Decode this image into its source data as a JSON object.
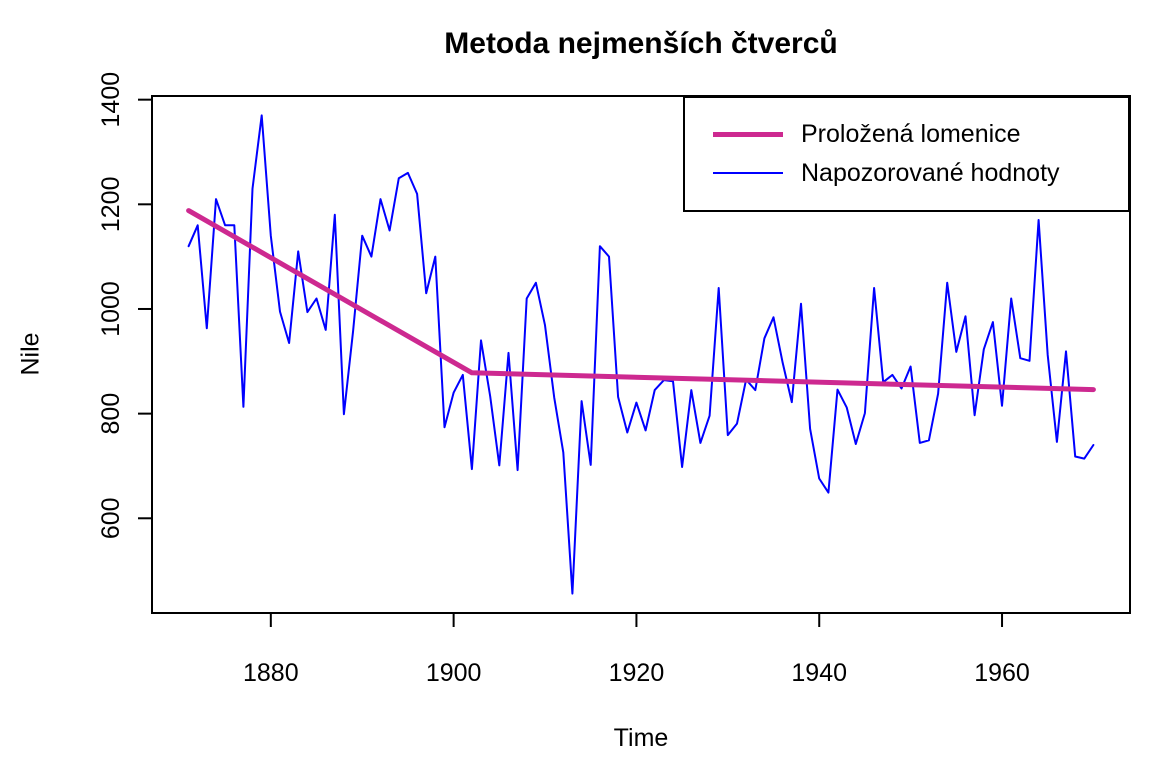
{
  "title": "Metoda nejmenších čtverců",
  "colors": {
    "fitted": "#CD2990",
    "observed": "#0000FF",
    "axis": "#000000",
    "background": "#FFFFFF"
  },
  "legend": {
    "position": "topright",
    "items": [
      {
        "label": "Proložená lomenice",
        "color": "#CD2990",
        "line_width": 5
      },
      {
        "label": "Napozorované hodnoty",
        "color": "#0000FF",
        "line_width": 2
      }
    ]
  },
  "chart_data": {
    "type": "line",
    "title": "Metoda nejmenších čtverců",
    "xlabel": "Time",
    "ylabel": "Nile",
    "xlim": [
      1867,
      1974
    ],
    "ylim": [
      419,
      1407
    ],
    "x_ticks": [
      1880,
      1900,
      1920,
      1940,
      1960
    ],
    "y_ticks": [
      600,
      800,
      1000,
      1200,
      1400
    ],
    "grid": false,
    "legend_position": "topright",
    "series": [
      {
        "name": "Proložená lomenice",
        "color": "#CD2990",
        "width": 5,
        "x": [
          1871,
          1902,
          1970
        ],
        "y": [
          1188,
          878,
          846
        ]
      },
      {
        "name": "Napozorované hodnoty",
        "color": "#0000FF",
        "width": 2,
        "x_start": 1871,
        "x_step": 1,
        "y": [
          1120,
          1160,
          963,
          1210,
          1160,
          1160,
          813,
          1230,
          1370,
          1140,
          995,
          935,
          1110,
          994,
          1020,
          960,
          1180,
          799,
          958,
          1140,
          1100,
          1210,
          1150,
          1250,
          1260,
          1220,
          1030,
          1100,
          774,
          840,
          874,
          694,
          940,
          833,
          701,
          916,
          692,
          1020,
          1050,
          969,
          831,
          726,
          456,
          824,
          702,
          1120,
          1100,
          832,
          764,
          821,
          768,
          845,
          864,
          862,
          698,
          845,
          744,
          796,
          1040,
          759,
          781,
          865,
          845,
          944,
          984,
          897,
          822,
          1010,
          771,
          676,
          649,
          846,
          812,
          742,
          801,
          1040,
          860,
          874,
          848,
          890,
          744,
          749,
          838,
          1050,
          918,
          986,
          797,
          923,
          975,
          815,
          1020,
          906,
          901,
          1170,
          912,
          746,
          919,
          718,
          714,
          740
        ]
      }
    ]
  }
}
